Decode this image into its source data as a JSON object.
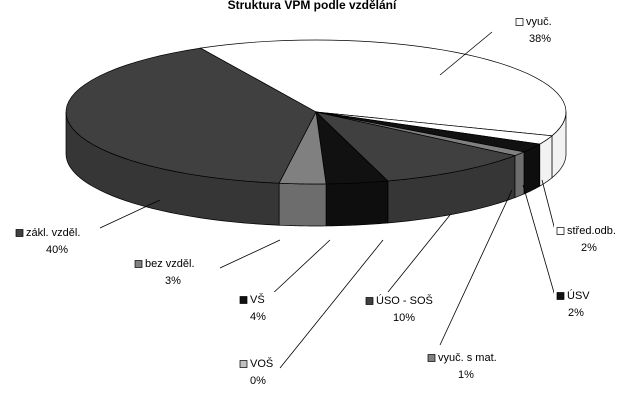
{
  "chart_data": {
    "type": "pie",
    "title": "Struktura VPM podle vzdělání",
    "categories": [
      "vyuč.",
      "střed.odb.",
      "ÚSV",
      "vyuč. s mat.",
      "ÚSO - SOŠ",
      "VOŠ",
      "VŠ",
      "bez vzděl.",
      "zákl. vzděl."
    ],
    "values": [
      38,
      2,
      2,
      1,
      10,
      0,
      4,
      3,
      40
    ],
    "value_labels": [
      "38%",
      "2%",
      "2%",
      "1%",
      "10%",
      "0%",
      "4%",
      "3%",
      "40%"
    ],
    "colors": [
      "#ffffff",
      "#ffffff",
      "#111111",
      "#808080",
      "#404040",
      "#c0c0c0",
      "#111111",
      "#808080",
      "#404040"
    ]
  }
}
